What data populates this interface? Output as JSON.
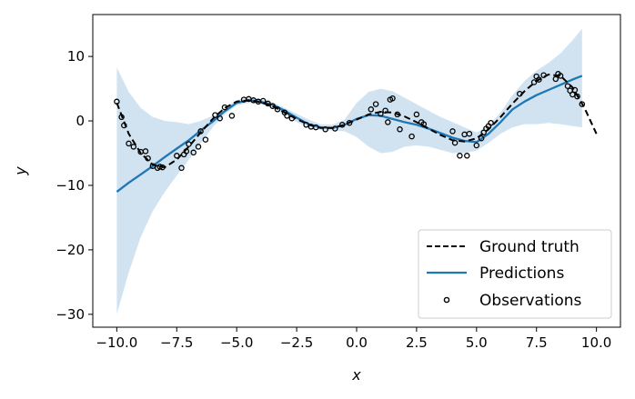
{
  "chart_data": {
    "type": "line",
    "title": "",
    "xlabel": "x",
    "ylabel": "y",
    "xlim": [
      -11.0,
      11.0
    ],
    "ylim": [
      -32.0,
      16.5
    ],
    "xticks": [
      -10.0,
      -7.5,
      -5.0,
      -2.5,
      0.0,
      2.5,
      5.0,
      7.5,
      10.0
    ],
    "xtick_labels": [
      "−10.0",
      "−7.5",
      "−5.0",
      "−2.5",
      "0.0",
      "2.5",
      "5.0",
      "7.5",
      "10.0"
    ],
    "yticks": [
      -30,
      -20,
      -10,
      0,
      10
    ],
    "ytick_labels": [
      "−30",
      "−20",
      "−10",
      "0",
      "10"
    ],
    "grid": false,
    "legend_position": "bottom-right",
    "colors": {
      "ground_truth": "#000000",
      "predictions": "#1f77b4",
      "band": "#c6dcec",
      "observations": "#000000"
    },
    "legend": [
      {
        "key": "ground_truth",
        "label": "Ground truth"
      },
      {
        "key": "predictions",
        "label": "Predictions"
      },
      {
        "key": "observations",
        "label": "Observations"
      }
    ],
    "series": [
      {
        "name": "Ground truth",
        "style": "dashed",
        "x": [
          -10.0,
          -9.5,
          -9.0,
          -8.5,
          -8.0,
          -7.5,
          -7.0,
          -6.5,
          -6.0,
          -5.5,
          -5.0,
          -4.5,
          -4.0,
          -3.5,
          -3.0,
          -2.5,
          -2.0,
          -1.5,
          -1.0,
          -0.5,
          0.0,
          0.5,
          1.0,
          1.5,
          2.0,
          2.5,
          3.0,
          3.5,
          4.0,
          4.5,
          5.0,
          5.5,
          6.0,
          6.5,
          7.0,
          7.5,
          8.0,
          8.5,
          9.0,
          9.5,
          10.0
        ],
        "y": [
          2.8,
          -2.0,
          -5.0,
          -6.8,
          -7.2,
          -6.0,
          -4.0,
          -1.8,
          0.3,
          2.0,
          3.0,
          3.2,
          2.9,
          2.3,
          1.3,
          0.3,
          -0.6,
          -1.1,
          -1.1,
          -0.6,
          0.2,
          1.0,
          1.4,
          1.3,
          0.7,
          -0.2,
          -1.2,
          -2.2,
          -3.0,
          -3.2,
          -2.7,
          -1.3,
          0.6,
          2.7,
          4.6,
          6.2,
          7.2,
          7.0,
          5.2,
          2.0,
          -2.0
        ]
      },
      {
        "name": "Predictions",
        "style": "solid",
        "x": [
          -10.0,
          -9.5,
          -9.0,
          -8.5,
          -8.0,
          -7.5,
          -7.0,
          -6.5,
          -6.0,
          -5.5,
          -5.0,
          -4.5,
          -4.0,
          -3.5,
          -3.0,
          -2.5,
          -2.0,
          -1.5,
          -1.0,
          -0.5,
          0.0,
          0.5,
          1.0,
          1.5,
          2.0,
          2.5,
          3.0,
          3.5,
          4.0,
          4.5,
          5.0,
          5.5,
          6.0,
          6.5,
          7.0,
          7.5,
          8.0,
          8.5,
          9.0,
          9.4
        ],
        "y": [
          -11.0,
          -9.6,
          -8.3,
          -7.0,
          -5.6,
          -4.3,
          -3.0,
          -1.5,
          -0.1,
          1.5,
          2.8,
          3.2,
          3.0,
          2.5,
          1.6,
          0.5,
          -0.5,
          -1.0,
          -1.1,
          -0.6,
          0.3,
          0.9,
          0.8,
          0.3,
          -0.2,
          -0.6,
          -1.2,
          -1.9,
          -2.6,
          -3.1,
          -3.3,
          -2.0,
          -0.2,
          1.8,
          3.0,
          4.0,
          4.8,
          5.6,
          6.4,
          7.0
        ]
      },
      {
        "name": "Confidence band",
        "style": "band",
        "x": [
          -10.0,
          -9.5,
          -9.0,
          -8.5,
          -8.0,
          -7.5,
          -7.0,
          -6.5,
          -6.0,
          -5.5,
          -5.0,
          -4.5,
          -4.0,
          -3.5,
          -3.0,
          -2.5,
          -2.0,
          -1.5,
          -1.0,
          -0.5,
          0.0,
          0.5,
          1.0,
          1.5,
          2.0,
          2.5,
          3.0,
          3.5,
          4.0,
          4.5,
          5.0,
          5.5,
          6.0,
          6.5,
          7.0,
          7.5,
          8.0,
          8.5,
          9.0,
          9.4
        ],
        "lower": [
          -30.0,
          -23.5,
          -18.0,
          -14.0,
          -11.0,
          -8.5,
          -6.0,
          -3.5,
          -1.0,
          1.0,
          2.4,
          2.8,
          2.6,
          2.0,
          1.0,
          -0.2,
          -1.0,
          -1.4,
          -1.5,
          -1.6,
          -2.5,
          -4.0,
          -5.0,
          -4.8,
          -4.0,
          -3.8,
          -4.0,
          -4.5,
          -5.0,
          -5.0,
          -4.6,
          -3.4,
          -2.0,
          -1.0,
          -0.5,
          -0.5,
          -0.3,
          -0.5,
          -0.8,
          -1.0
        ],
        "upper": [
          8.3,
          4.5,
          2.0,
          0.6,
          0.0,
          -0.2,
          -0.5,
          0.0,
          0.8,
          2.0,
          3.2,
          3.6,
          3.4,
          2.9,
          2.0,
          1.1,
          0.2,
          -0.5,
          -0.6,
          0.2,
          2.8,
          4.5,
          5.0,
          4.6,
          3.6,
          2.6,
          1.6,
          0.6,
          -0.2,
          -1.0,
          -1.8,
          -0.8,
          1.3,
          4.0,
          6.2,
          7.8,
          9.0,
          10.5,
          12.5,
          14.3
        ]
      }
    ],
    "observations": {
      "x": [
        -10.0,
        -9.8,
        -9.7,
        -9.5,
        -9.3,
        -9.0,
        -8.8,
        -8.7,
        -8.5,
        -8.3,
        -8.2,
        -8.1,
        -7.5,
        -7.3,
        -7.2,
        -7.1,
        -7.0,
        -6.8,
        -6.6,
        -6.5,
        -6.3,
        -5.9,
        -5.7,
        -5.5,
        -5.2,
        -4.7,
        -4.5,
        -4.3,
        -4.1,
        -3.9,
        -3.7,
        -3.5,
        -3.3,
        -3.0,
        -2.9,
        -2.7,
        -2.1,
        -1.9,
        -1.7,
        -1.3,
        -0.9,
        -0.6,
        -0.3,
        0.6,
        0.8,
        1.0,
        1.2,
        1.3,
        1.4,
        1.5,
        1.7,
        1.8,
        2.3,
        2.5,
        2.7,
        2.8,
        4.0,
        4.1,
        4.3,
        4.5,
        4.6,
        4.7,
        5.0,
        5.2,
        5.3,
        5.4,
        5.5,
        5.6,
        6.8,
        7.4,
        7.5,
        7.6,
        7.8,
        8.3,
        8.4,
        8.5,
        8.8,
        8.9,
        9.0,
        9.1,
        9.2,
        9.4
      ],
      "y": [
        3.0,
        0.6,
        -0.7,
        -3.5,
        -4.0,
        -4.8,
        -4.7,
        -5.8,
        -7.0,
        -7.3,
        -7.1,
        -7.2,
        -5.4,
        -7.3,
        -5.2,
        -4.7,
        -3.6,
        -4.9,
        -4.0,
        -1.6,
        -2.9,
        0.9,
        0.4,
        2.1,
        0.8,
        3.3,
        3.4,
        3.2,
        3.0,
        3.1,
        2.7,
        2.3,
        1.8,
        1.3,
        0.8,
        0.4,
        -0.6,
        -0.9,
        -1.0,
        -1.3,
        -1.2,
        -0.6,
        -0.3,
        1.8,
        2.6,
        1.1,
        1.6,
        -0.2,
        3.3,
        3.5,
        1.0,
        -1.3,
        -2.4,
        1.0,
        -0.2,
        -0.5,
        -1.6,
        -3.4,
        -5.4,
        -2.1,
        -5.4,
        -2.0,
        -3.8,
        -2.7,
        -1.8,
        -1.2,
        -0.8,
        -0.3,
        4.2,
        6.0,
        6.9,
        6.4,
        7.1,
        6.5,
        7.3,
        7.0,
        5.4,
        4.7,
        4.1,
        4.8,
        3.8,
        2.6
      ]
    }
  }
}
